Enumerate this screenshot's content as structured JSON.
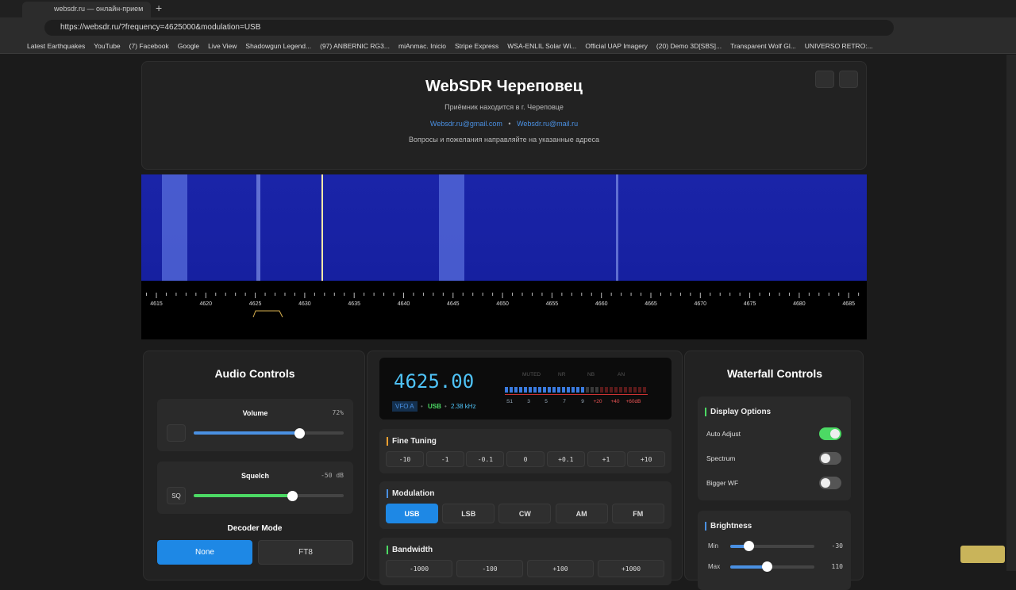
{
  "browser": {
    "tab_title": "websdr.ru — онлайн-прием",
    "url": "https://websdr.ru/?frequency=4625000&modulation=USB",
    "bookmarks": [
      "Latest Earthquakes",
      "YouTube",
      "(7) Facebook",
      "Google",
      "Live View",
      "Shadowgun Legend...",
      "(97) ANBERNIC RG3...",
      "miAnmac. Inicio",
      "Stripe Express",
      "WSA-ENLIL Solar Wi...",
      "Official UAP Imagery",
      "(20) Demo 3D[SBS]...",
      "Transparent Wolf Gl...",
      "UNIVERSO RETRO:..."
    ]
  },
  "header": {
    "title": "WebSDR Череповец",
    "location": "Приёмник находится в г. Череповце",
    "email_1": "Websdr.ru@gmail.com",
    "separator": "•",
    "email_2": "Websdr.ru@mail.ru",
    "note": "Вопросы и пожелания направляйте на указанные адреса"
  },
  "waterfall": {
    "scale_labels": [
      4615,
      4620,
      4625,
      4630,
      4635,
      4640,
      4645,
      4650,
      4655,
      4660,
      4665,
      4670,
      4675,
      4680,
      4685
    ]
  },
  "audio": {
    "title": "Audio Controls",
    "volume_label": "Volume",
    "volume_value": "72%",
    "squelch_label": "Squelch",
    "squelch_value": "-50 dB",
    "squelch_button": "SQ",
    "decoder_title": "Decoder Mode",
    "decoders": [
      "None",
      "FT8"
    ]
  },
  "radio": {
    "frequency": "4625.00",
    "vfo": "VFO A",
    "dot": "•",
    "mode": "USB",
    "bandwidth": "2.38 kHz",
    "indicators": [
      "MUTED",
      "NR",
      "NB",
      "AN"
    ],
    "s_scale": [
      "S1",
      "3",
      "5",
      "7",
      "9",
      "+20",
      "+40",
      "+60dB"
    ]
  },
  "fine_tuning": {
    "title": "Fine Tuning",
    "steps": [
      "-10",
      "-1",
      "-0.1",
      "0",
      "+0.1",
      "+1",
      "+10"
    ]
  },
  "modulation": {
    "title": "Modulation",
    "modes": [
      "USB",
      "LSB",
      "CW",
      "AM",
      "FM"
    ]
  },
  "bandwidth": {
    "title": "Bandwidth",
    "steps": [
      "-1000",
      "-100",
      "+100",
      "+1000"
    ]
  },
  "waterfall_controls": {
    "title": "Waterfall Controls",
    "display_options": "Display Options",
    "options": [
      "Auto Adjust",
      "Spectrum",
      "Bigger WF"
    ],
    "brightness": "Brightness",
    "min_label": "Min",
    "min_value": "-30",
    "max_label": "Max",
    "max_value": "110"
  }
}
